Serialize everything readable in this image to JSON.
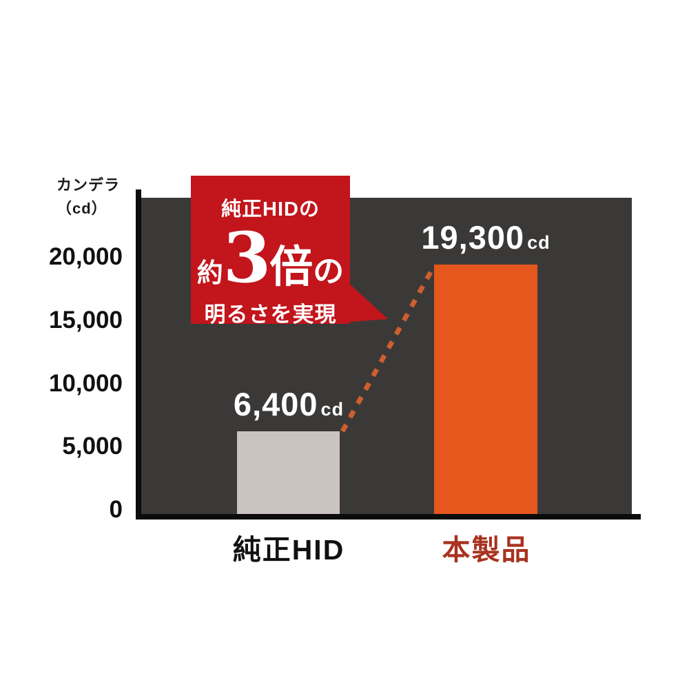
{
  "y_axis": {
    "unit_line1": "カンデラ",
    "unit_line2": "（cd）",
    "ticks": [
      "20,000",
      "15,000",
      "10,000",
      "5,000",
      "0"
    ]
  },
  "bars": [
    {
      "label": "純正HID",
      "value": "6,400",
      "unit": "cd"
    },
    {
      "label": "本製品",
      "value": "19,300",
      "unit": "cd"
    }
  ],
  "callout": {
    "line1": "純正HIDの",
    "approx": "約",
    "multiplier": "3",
    "times": "倍",
    "particle": "の",
    "line3": "明るさを実現"
  },
  "colors": {
    "plot_background": "#3B3938",
    "axis": "#0c0c0c",
    "bar_hid": "#CBC3C0",
    "bar_product": "#E5571D",
    "callout_red": "#C2151C",
    "connector_orange": "#CE5F2E",
    "product_label_red": "#A8331F",
    "value_text": "#ffffff"
  },
  "chart_data": {
    "type": "bar",
    "title": "",
    "categories": [
      "純正HID",
      "本製品"
    ],
    "values": [
      6400,
      19300
    ],
    "value_labels": [
      "6,400cd",
      "19,300cd"
    ],
    "unit": "cd",
    "ylabel": "カンデラ（cd）",
    "ylim": [
      0,
      20000
    ],
    "yticks": [
      0,
      5000,
      10000,
      15000,
      20000
    ],
    "ytick_labels": [
      "0",
      "5,000",
      "10,000",
      "15,000",
      "20,000"
    ],
    "grid": false,
    "legend": false,
    "annotation": "純正HIDの約3倍の明るさを実現",
    "bar_colors": [
      "#CBC3C0",
      "#E5571D"
    ],
    "plot_background": "#3B3938"
  }
}
